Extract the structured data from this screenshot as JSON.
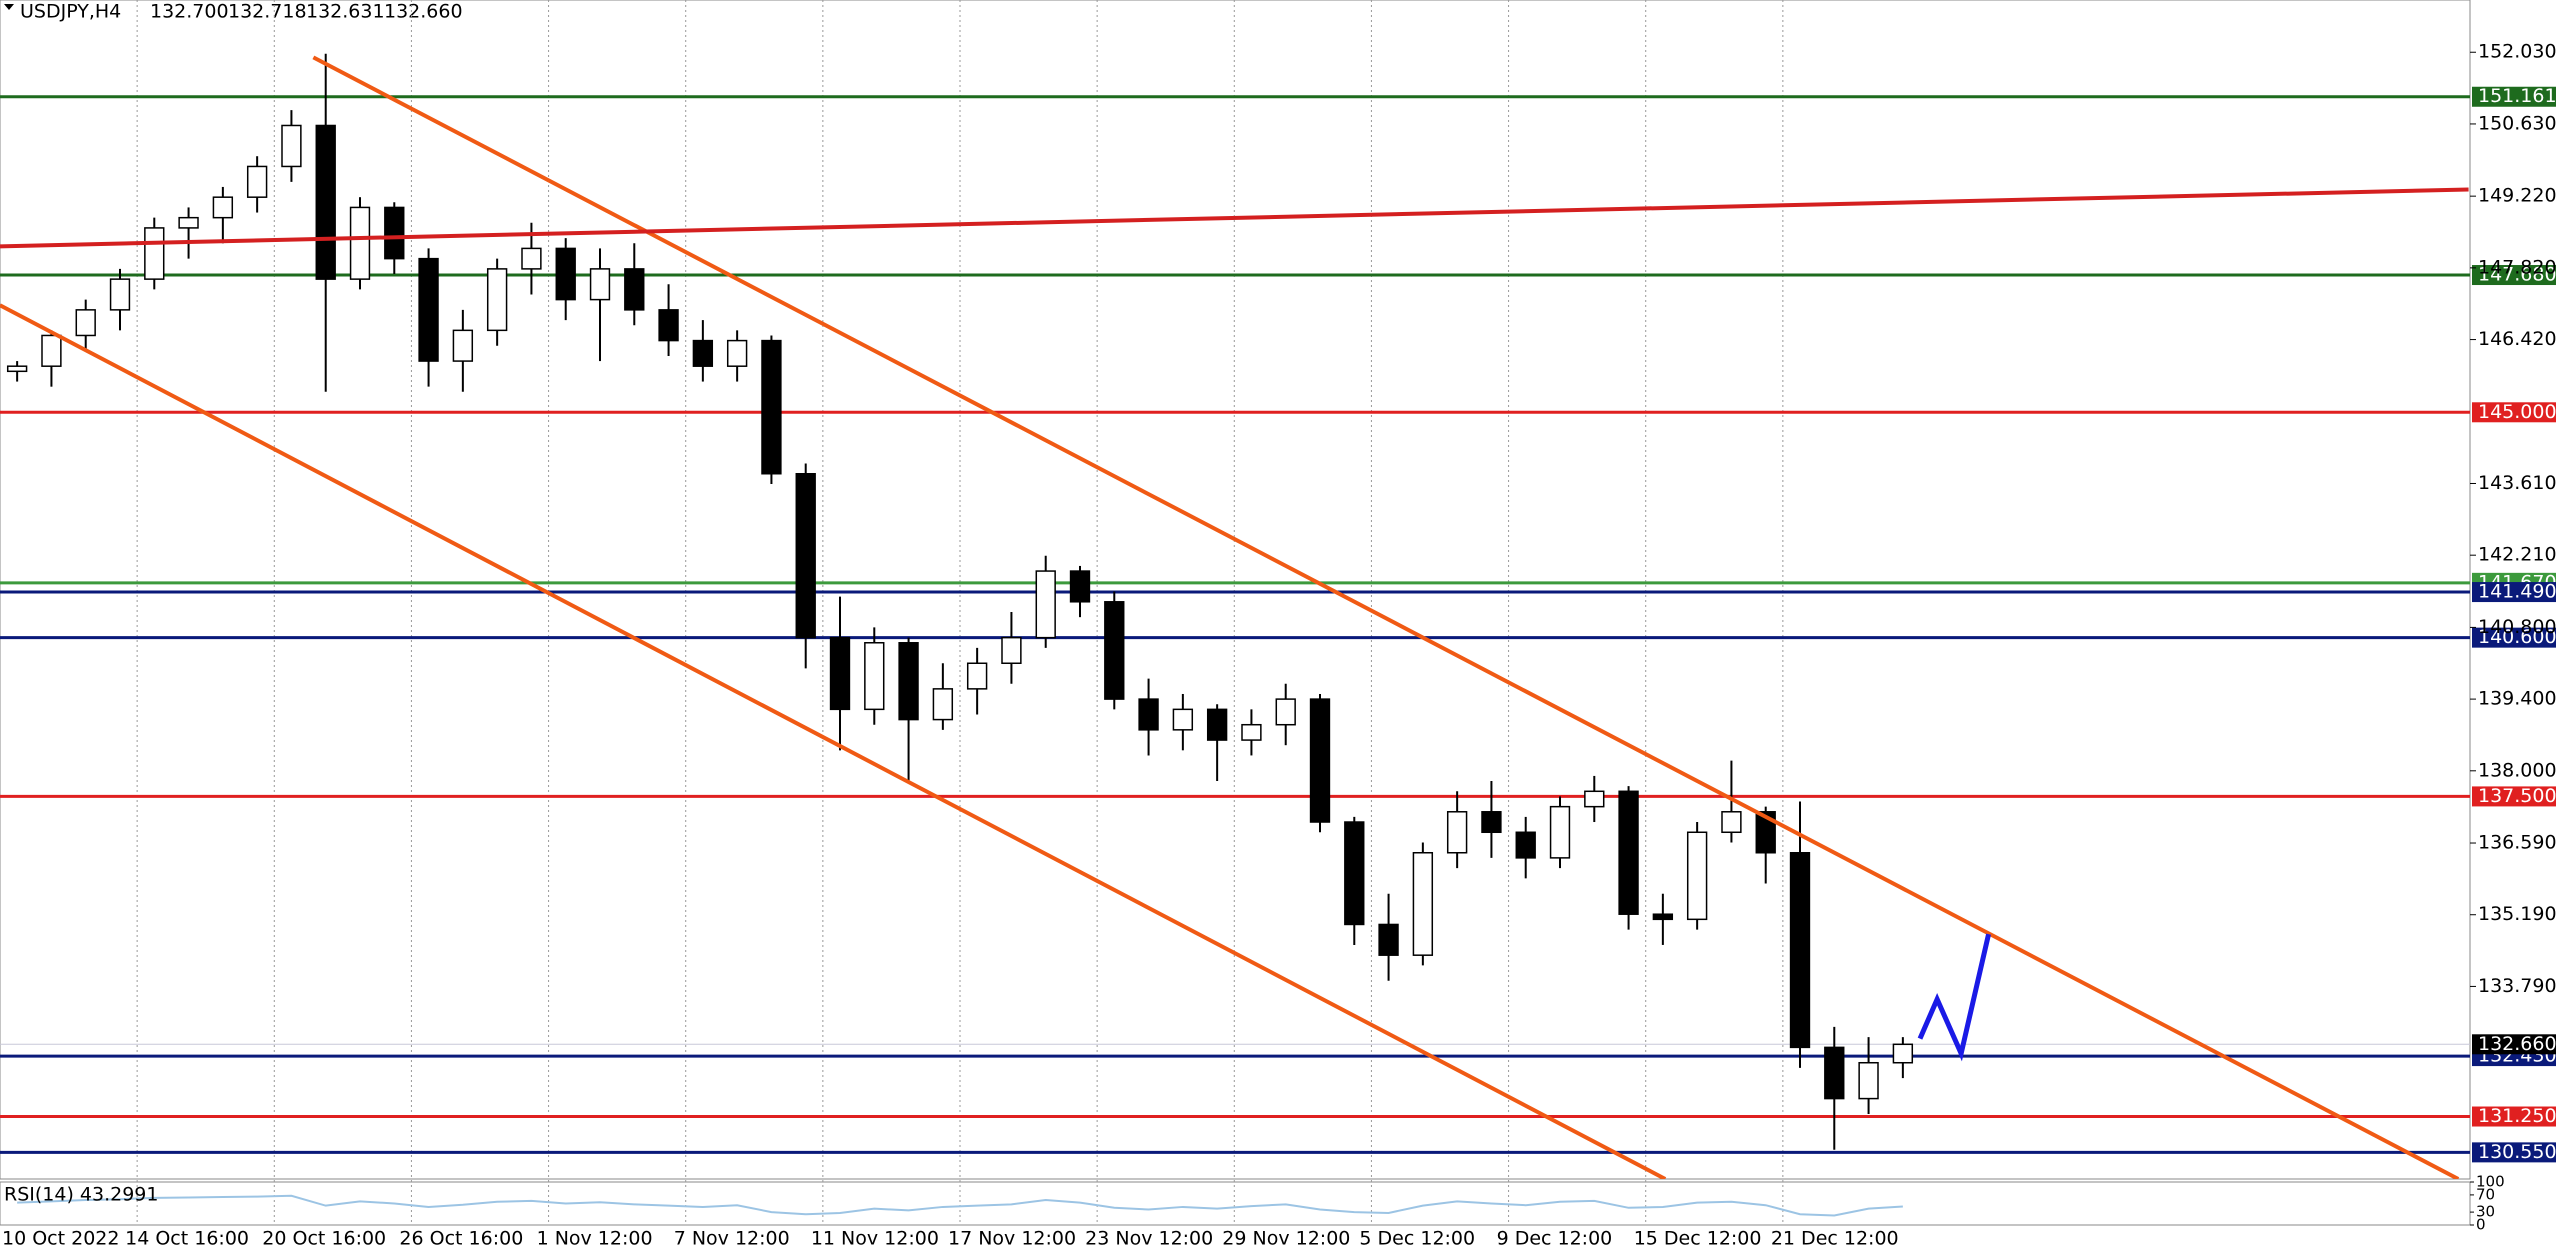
{
  "chart_data": {
    "type": "candlestick",
    "title": "USDJPY,H4",
    "quote": [
      "132.700",
      "132.718",
      "132.631",
      "132.660"
    ],
    "categories": [
      "10 Oct 2022",
      null,
      null,
      null,
      "14 Oct 16:00",
      null,
      null,
      null,
      "20 Oct 16:00",
      null,
      null,
      null,
      "26 Oct 16:00",
      null,
      null,
      null,
      "1 Nov 12:00",
      null,
      null,
      null,
      "7 Nov 12:00",
      null,
      null,
      null,
      "11 Nov 12:00",
      null,
      null,
      null,
      "17 Nov 12:00",
      null,
      null,
      null,
      "23 Nov 12:00",
      null,
      null,
      null,
      "29 Nov 12:00",
      null,
      null,
      null,
      "5 Dec 12:00",
      null,
      null,
      null,
      "9 Dec 12:00",
      null,
      null,
      null,
      "15 Dec 12:00",
      null,
      null,
      null,
      "21 Dec 12:00",
      null,
      null,
      null
    ],
    "open": [
      145.8,
      145.9,
      146.5,
      147.0,
      147.6,
      148.6,
      148.8,
      149.2,
      149.8,
      150.6,
      147.6,
      149.0,
      148.0,
      146.0,
      146.6,
      147.8,
      148.2,
      147.2,
      147.8,
      147.0,
      146.4,
      145.9,
      146.4,
      143.8,
      140.6,
      139.2,
      140.5,
      139.0,
      139.6,
      140.1,
      140.6,
      141.9,
      141.3,
      139.4,
      138.8,
      139.2,
      138.6,
      138.9,
      139.4,
      137.0,
      135.0,
      134.4,
      136.4,
      137.2,
      136.8,
      136.3,
      137.3,
      137.6,
      135.2,
      135.1,
      136.8,
      137.2,
      136.4,
      132.6,
      131.6,
      132.3
    ],
    "high": [
      146.0,
      146.6,
      147.2,
      147.8,
      148.8,
      149.0,
      149.4,
      150.0,
      150.9,
      152.0,
      149.2,
      149.1,
      148.2,
      147.0,
      148.0,
      148.7,
      148.4,
      148.2,
      148.3,
      147.5,
      146.8,
      146.6,
      146.5,
      144.0,
      141.4,
      140.8,
      140.6,
      140.1,
      140.4,
      141.1,
      142.2,
      142.0,
      141.5,
      139.8,
      139.5,
      139.3,
      139.2,
      139.7,
      139.5,
      137.1,
      135.6,
      136.6,
      137.6,
      137.8,
      137.1,
      137.5,
      137.9,
      137.7,
      135.6,
      137.0,
      138.2,
      137.3,
      137.4,
      133.0,
      132.8,
      132.8
    ],
    "low": [
      145.6,
      145.5,
      146.2,
      146.6,
      147.4,
      148.0,
      148.3,
      148.9,
      149.5,
      145.4,
      147.4,
      147.7,
      145.5,
      145.4,
      146.3,
      147.3,
      146.8,
      146.0,
      146.7,
      146.1,
      145.6,
      145.6,
      143.6,
      140.0,
      138.4,
      138.9,
      137.8,
      138.8,
      139.1,
      139.7,
      140.4,
      141.0,
      139.2,
      138.3,
      138.4,
      137.8,
      138.3,
      138.5,
      136.8,
      134.6,
      133.9,
      134.2,
      136.1,
      136.3,
      135.9,
      136.1,
      137.0,
      134.9,
      134.6,
      134.9,
      136.6,
      135.8,
      132.2,
      130.6,
      131.3,
      132.0
    ],
    "close": [
      145.9,
      146.5,
      147.0,
      147.6,
      148.6,
      148.8,
      149.2,
      149.8,
      150.6,
      147.6,
      149.0,
      148.0,
      146.0,
      146.6,
      147.8,
      148.2,
      147.2,
      147.8,
      147.0,
      146.4,
      145.9,
      146.4,
      143.8,
      140.6,
      139.2,
      140.5,
      139.0,
      139.6,
      140.1,
      140.6,
      141.9,
      141.3,
      139.4,
      138.8,
      139.2,
      138.6,
      138.9,
      139.4,
      137.0,
      135.0,
      134.4,
      136.4,
      137.2,
      136.8,
      136.3,
      137.3,
      137.6,
      135.2,
      135.1,
      136.8,
      137.2,
      136.4,
      132.6,
      131.6,
      132.3,
      132.66
    ],
    "ylim": [
      130.03,
      153.05
    ],
    "yticks": [
      {
        "value": 152.03,
        "label": "152.030"
      },
      {
        "value": 150.63,
        "label": "150.630"
      },
      {
        "value": 149.22,
        "label": "149.220"
      },
      {
        "value": 147.82,
        "label": "147.820"
      },
      {
        "value": 146.42,
        "label": "146.420"
      },
      {
        "value": 143.61,
        "label": "143.610"
      },
      {
        "value": 142.21,
        "label": "142.210"
      },
      {
        "value": 140.8,
        "label": "140.800"
      },
      {
        "value": 139.4,
        "label": "139.400"
      },
      {
        "value": 138,
        "label": "138.000"
      },
      {
        "value": 136.59,
        "label": "136.590"
      },
      {
        "value": 135.19,
        "label": "135.190"
      },
      {
        "value": 133.79,
        "label": "133.790"
      }
    ],
    "grid": true,
    "levels": [
      {
        "value": 151.161,
        "label": "151.161",
        "color": "#1e6b1e"
      },
      {
        "value": 147.68,
        "label": "147.680",
        "color": "#1e6b1e"
      },
      {
        "value": 145,
        "label": "145.000",
        "color": "#e02020"
      },
      {
        "value": 141.67,
        "label": "141.670",
        "color": "#3c9a3c"
      },
      {
        "value": 141.49,
        "label": "141.490",
        "color": "#0a1a7a"
      },
      {
        "value": 140.6,
        "label": "140.600",
        "color": "#0a1a7a"
      },
      {
        "value": 137.5,
        "label": "137.500",
        "color": "#e02020"
      },
      {
        "value": 132.43,
        "label": "132.430",
        "color": "#0a1a7a"
      },
      {
        "value": 131.25,
        "label": "131.250",
        "color": "#e02020"
      },
      {
        "value": 130.55,
        "label": "130.550",
        "color": "#0a1a7a"
      }
    ],
    "last_price": {
      "value": 132.66,
      "label": "132.660",
      "color": "#000000"
    },
    "trendlines": [
      {
        "color": "#f05a14",
        "x": [
          8.64,
          71.2
        ],
        "y": [
          151.93,
          130.03
        ]
      },
      {
        "color": "#f05a14",
        "x": [
          -0.5,
          48.07
        ],
        "y": [
          147.09,
          130.03
        ]
      },
      {
        "color": "#d42020",
        "x": [
          -0.5,
          71.5
        ],
        "y": [
          148.24,
          149.35
        ]
      },
      {
        "color": "#1a1ae6",
        "x": [
          55.5,
          56,
          56.7,
          57.5
        ],
        "y": [
          132.77,
          133.54,
          132.48,
          134.81
        ]
      }
    ],
    "indicator": {
      "title": "RSI(14) 43.2991",
      "color": "#9cc4e4",
      "ylim": [
        0,
        100
      ],
      "yticks": [
        0,
        30,
        70,
        100
      ],
      "values": [
        52,
        55,
        58,
        60,
        63,
        64,
        65,
        66,
        68,
        45,
        55,
        50,
        42,
        47,
        54,
        56,
        50,
        53,
        48,
        45,
        42,
        46,
        30,
        25,
        28,
        38,
        34,
        42,
        45,
        48,
        58,
        52,
        40,
        36,
        42,
        38,
        44,
        48,
        36,
        30,
        28,
        45,
        55,
        50,
        46,
        54,
        56,
        40,
        42,
        52,
        54,
        46,
        25,
        22,
        38,
        43
      ]
    }
  }
}
